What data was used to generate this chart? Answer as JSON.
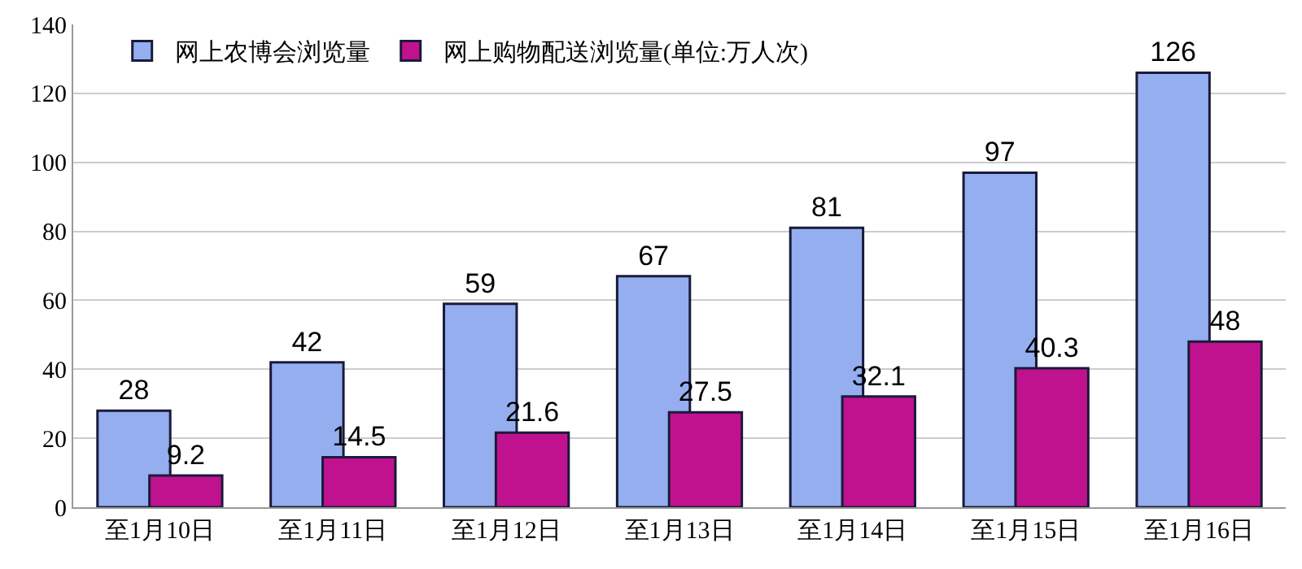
{
  "chart_data": {
    "type": "bar",
    "categories": [
      "至1月10日",
      "至1月11日",
      "至1月12日",
      "至1月13日",
      "至1月14日",
      "至1月15日",
      "至1月16日"
    ],
    "series": [
      {
        "name": "网上农博会浏览量",
        "color": "#94aef0",
        "values": [
          28,
          42,
          59,
          67,
          81,
          97,
          126
        ]
      },
      {
        "name": "网上购物配送浏览量(单位:万人次)",
        "color": "#c0128f",
        "values": [
          9.2,
          14.5,
          21.6,
          27.5,
          32.1,
          40.3,
          48
        ]
      }
    ],
    "ylim": [
      0,
      140
    ],
    "yticks": [
      0,
      20,
      40,
      60,
      80,
      100,
      120,
      140
    ],
    "grid": "y",
    "legend": "top left",
    "data_labels": true
  }
}
